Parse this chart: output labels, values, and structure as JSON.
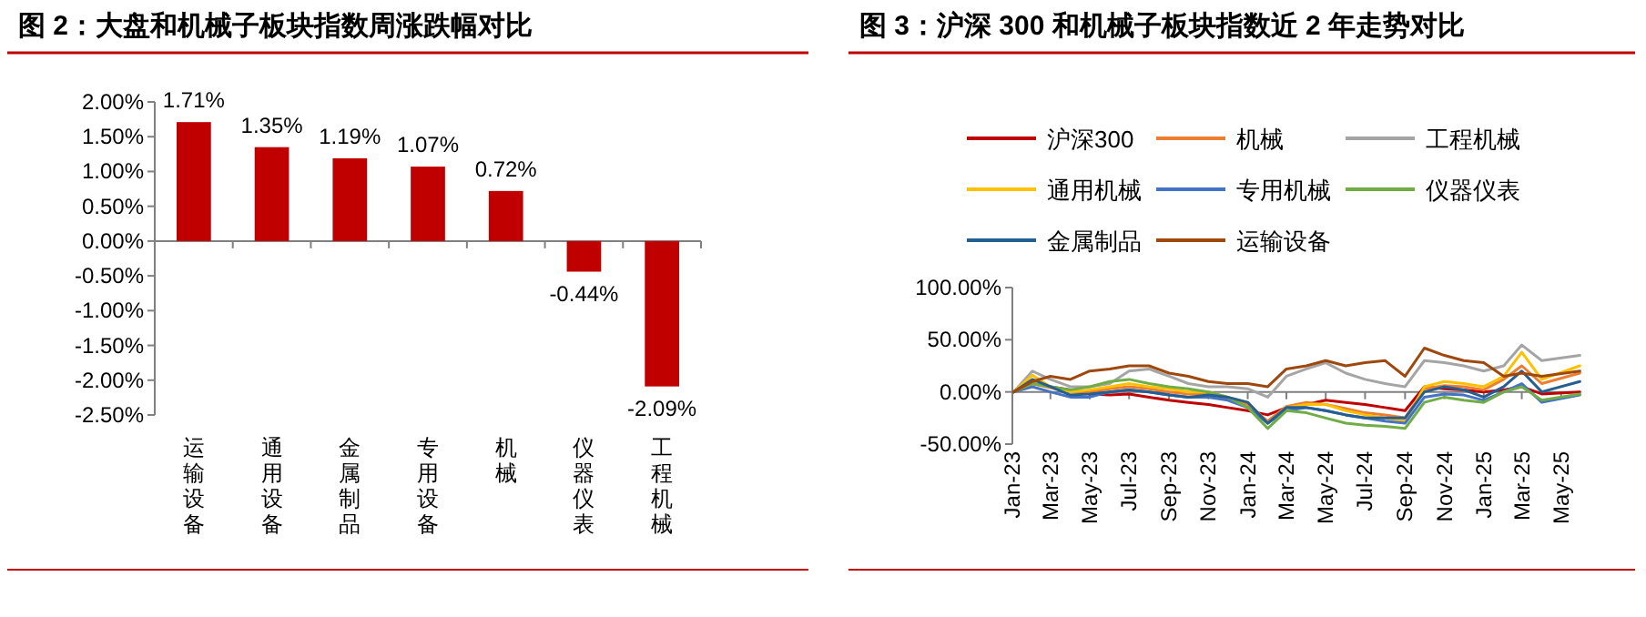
{
  "chart_data": [
    {
      "type": "bar",
      "title": "图 2：大盘和机械子板块指数周涨跌幅对比",
      "categories": [
        "运输设备",
        "通用设备",
        "金属制品",
        "专用设备",
        "机械",
        "仪器仪表",
        "工程机械"
      ],
      "values": [
        1.71,
        1.35,
        1.19,
        1.07,
        0.72,
        -0.44,
        -2.09
      ],
      "value_labels": [
        "1.71%",
        "1.35%",
        "1.19%",
        "1.07%",
        "0.72%",
        "-0.44%",
        "-2.09%"
      ],
      "color": "#c00000",
      "ylim": [
        -2.5,
        2.0
      ],
      "yticks": [
        {
          "value": -2.5,
          "label": "-2.50%"
        },
        {
          "value": -2.0,
          "label": "-2.00%"
        },
        {
          "value": -1.5,
          "label": "-1.50%"
        },
        {
          "value": -1.0,
          "label": "-1.00%"
        },
        {
          "value": -0.5,
          "label": "-0.50%"
        },
        {
          "value": 0,
          "label": "0.00%"
        },
        {
          "value": 0.5,
          "label": "0.50%"
        },
        {
          "value": 1.0,
          "label": "1.00%"
        },
        {
          "value": 1.5,
          "label": "1.50%"
        },
        {
          "value": 2.0,
          "label": "2.00%"
        }
      ]
    },
    {
      "type": "line",
      "title": "图 3：沪深 300 和机械子板块指数近 2 年走势对比",
      "x": [
        "2023-01-03",
        "2023-02",
        "2023-03",
        "2023-04",
        "2023-05",
        "2023-06",
        "2023-07",
        "2023-08",
        "2023-09",
        "2023-10",
        "2023-11",
        "2023-12",
        "2024-01",
        "2024-02",
        "2024-03",
        "2024-04",
        "2024-05",
        "2024-06",
        "2024-07",
        "2024-08",
        "2024-09",
        "2024-10",
        "2024-11",
        "2024-12",
        "2025-01",
        "2025-02",
        "2025-03",
        "2025-04",
        "2025-05-30"
      ],
      "series": [
        {
          "name": "沪深300",
          "color": "#c00000",
          "values": [
            0,
            8,
            5,
            2,
            -2,
            -3,
            -2,
            -5,
            -8,
            -10,
            -12,
            -15,
            -18,
            -22,
            -15,
            -12,
            -8,
            -10,
            -12,
            -15,
            -18,
            5,
            3,
            2,
            0,
            2,
            5,
            -2,
            0
          ]
        },
        {
          "name": "机械",
          "color": "#ed7d31",
          "values": [
            0,
            8,
            4,
            0,
            0,
            3,
            5,
            3,
            0,
            -2,
            -2,
            -6,
            -12,
            -28,
            -14,
            -10,
            -12,
            -16,
            -20,
            -22,
            -25,
            3,
            6,
            5,
            2,
            12,
            25,
            8,
            18
          ]
        },
        {
          "name": "工程机械",
          "color": "#a5a5a5",
          "values": [
            0,
            20,
            12,
            5,
            5,
            8,
            20,
            22,
            15,
            8,
            5,
            5,
            3,
            -5,
            15,
            22,
            28,
            18,
            12,
            8,
            5,
            30,
            28,
            25,
            20,
            25,
            45,
            30,
            35
          ]
        },
        {
          "name": "通用机械",
          "color": "#ffc000",
          "values": [
            0,
            16,
            5,
            0,
            2,
            5,
            8,
            5,
            3,
            0,
            0,
            -5,
            -10,
            -30,
            -15,
            -12,
            -12,
            -18,
            -22,
            -25,
            -28,
            5,
            10,
            8,
            5,
            15,
            38,
            12,
            25
          ]
        },
        {
          "name": "专用机械",
          "color": "#4472c4",
          "values": [
            0,
            5,
            0,
            -5,
            -5,
            0,
            2,
            0,
            -3,
            -5,
            -5,
            -8,
            -15,
            -30,
            -18,
            -15,
            -18,
            -22,
            -25,
            -28,
            -30,
            -5,
            -2,
            -3,
            -8,
            0,
            8,
            -10,
            -3
          ]
        },
        {
          "name": "仪器仪表",
          "color": "#70ad47",
          "values": [
            0,
            8,
            5,
            2,
            5,
            10,
            12,
            8,
            5,
            3,
            0,
            -5,
            -15,
            -35,
            -18,
            -20,
            -25,
            -30,
            -32,
            -33,
            -35,
            -10,
            -5,
            -8,
            -10,
            0,
            5,
            -8,
            -2
          ]
        },
        {
          "name": "金属制品",
          "color": "#255e91",
          "values": [
            0,
            12,
            5,
            -3,
            -2,
            0,
            2,
            0,
            -3,
            -5,
            -3,
            -5,
            -10,
            -30,
            -15,
            -15,
            -18,
            -22,
            -25,
            -25,
            -25,
            0,
            5,
            2,
            -5,
            5,
            20,
            0,
            10
          ]
        },
        {
          "name": "运输设备",
          "color": "#9e480e",
          "values": [
            0,
            10,
            15,
            12,
            20,
            22,
            25,
            25,
            18,
            15,
            10,
            8,
            8,
            5,
            22,
            25,
            30,
            25,
            28,
            30,
            15,
            42,
            35,
            30,
            28,
            15,
            18,
            15,
            20
          ]
        }
      ],
      "xlim": [
        "2023-01-01",
        "2025-05-31"
      ],
      "xticks": [
        {
          "value": "2023-01",
          "label": "Jan-23"
        },
        {
          "value": "2023-03",
          "label": "Mar-23"
        },
        {
          "value": "2023-05",
          "label": "May-23"
        },
        {
          "value": "2023-07",
          "label": "Jul-23"
        },
        {
          "value": "2023-09",
          "label": "Sep-23"
        },
        {
          "value": "2023-11",
          "label": "Nov-23"
        },
        {
          "value": "2024-01",
          "label": "Jan-24"
        },
        {
          "value": "2024-03",
          "label": "Mar-24"
        },
        {
          "value": "2024-05",
          "label": "May-24"
        },
        {
          "value": "2024-07",
          "label": "Jul-24"
        },
        {
          "value": "2024-09",
          "label": "Sep-24"
        },
        {
          "value": "2024-11",
          "label": "Nov-24"
        },
        {
          "value": "2025-01",
          "label": "Jan-25"
        },
        {
          "value": "2025-03",
          "label": "Mar-25"
        },
        {
          "value": "2025-05",
          "label": "May-25"
        }
      ],
      "ylim": [
        -50,
        100
      ],
      "yticks": [
        {
          "value": -50,
          "label": "-50.00%"
        },
        {
          "value": 0,
          "label": "0.00%"
        },
        {
          "value": 50,
          "label": "50.00%"
        },
        {
          "value": 100,
          "label": "100.00%"
        }
      ],
      "legend": "top"
    }
  ]
}
